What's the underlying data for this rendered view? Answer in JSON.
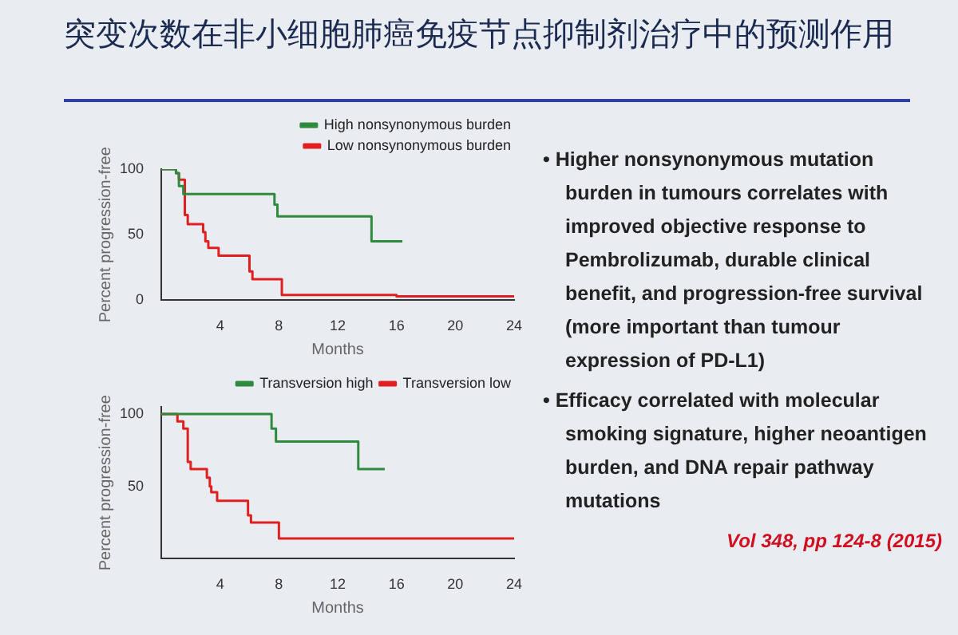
{
  "chart_data": [
    {
      "type": "step",
      "title": "突变次数在非小细胞肺癌免疫节点抑制剂治疗中的预测作用",
      "xlabel": "Months",
      "ylabel": "Percent progression-free",
      "xlim": [
        0,
        24
      ],
      "xticks": [
        4,
        8,
        12,
        16,
        20,
        24
      ],
      "ylim": [
        0,
        100
      ],
      "yticks": [
        0,
        50,
        100
      ],
      "grid": false,
      "legend": "top right",
      "marker": "none",
      "series": [
        {
          "name": "High nonsynonymous burden",
          "color": "#2e8b3e",
          "x": [
            0,
            1.0,
            1.2,
            1.5,
            7.7,
            7.9,
            14.3,
            16.4
          ],
          "values": [
            100,
            97,
            87,
            81,
            73,
            64,
            45,
            45
          ]
        },
        {
          "name": "Low nonsynonymous burden",
          "color": "#e02020",
          "x": [
            0,
            1.0,
            1.2,
            1.6,
            1.8,
            2.85,
            3.0,
            3.2,
            3.9,
            6.0,
            6.2,
            8.2,
            16,
            24
          ],
          "values": [
            100,
            97,
            92,
            65,
            58,
            52,
            45,
            40,
            34,
            22,
            16,
            4,
            3,
            2
          ]
        }
      ]
    },
    {
      "type": "step",
      "xlabel": "Months",
      "ylabel": "Percent progression-free",
      "xlim": [
        0,
        24
      ],
      "xticks": [
        4,
        8,
        12,
        16,
        20,
        24
      ],
      "ylim": [
        0,
        105
      ],
      "yticks": [
        50,
        100
      ],
      "grid": false,
      "legend": "top right",
      "marker": "none",
      "series": [
        {
          "name": "Transversion high",
          "color": "#2e8b3e",
          "x": [
            0,
            7.5,
            7.8,
            13.4,
            15.2
          ],
          "values": [
            100,
            90,
            81,
            62,
            62
          ]
        },
        {
          "name": "Transversion low",
          "color": "#e02020",
          "x": [
            0,
            1.1,
            1.5,
            1.8,
            2.0,
            3.1,
            3.3,
            3.4,
            3.8,
            5.9,
            6.1,
            8.0,
            24
          ],
          "values": [
            100,
            95,
            90,
            67,
            62,
            56,
            50,
            46,
            40,
            30,
            25,
            14,
            14
          ]
        }
      ]
    },
    {
      "type": "other",
      "annotations": [
        "• Higher nonsynonymous mutation burden in tumours correlates with improved objective response to Pembrolizumab, durable clinical benefit, and progression-free survival (more important than tumour expression of PD-L1)",
        "• Efficacy correlated with molecular smoking signature, higher neoantigen burden, and DNA repair pathway mutations",
        "Vol 348, pp 124-8 (2015)"
      ]
    }
  ]
}
